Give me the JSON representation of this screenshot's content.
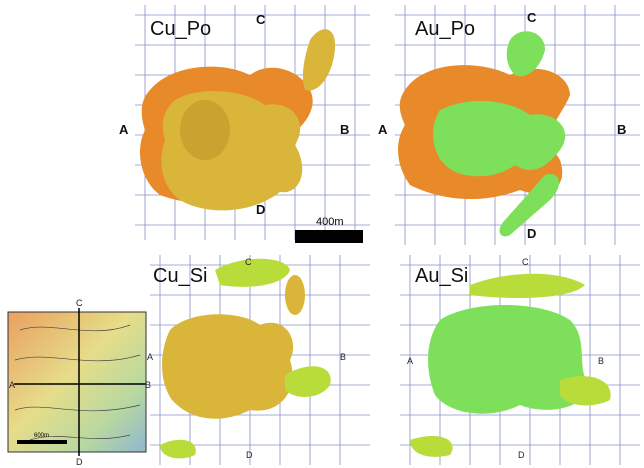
{
  "panels": [
    {
      "title": "Cu_Po",
      "labels": {
        "A": "A",
        "B": "B",
        "C": "C",
        "D": "D"
      },
      "scale": "400m"
    },
    {
      "title": "Au_Po",
      "labels": {
        "A": "A",
        "B": "B",
        "C": "C",
        "D": "D"
      }
    },
    {
      "title": "Cu_Si",
      "labels": {
        "A": "A",
        "B": "B",
        "C": "C",
        "D": "D"
      }
    },
    {
      "title": "Au_Si",
      "labels": {
        "A": "A",
        "B": "B",
        "C": "C",
        "D": "D"
      }
    }
  ],
  "inset": {
    "labels": {
      "A": "A",
      "B": "B",
      "C": "C",
      "D": "D"
    },
    "scale": "600m"
  }
}
